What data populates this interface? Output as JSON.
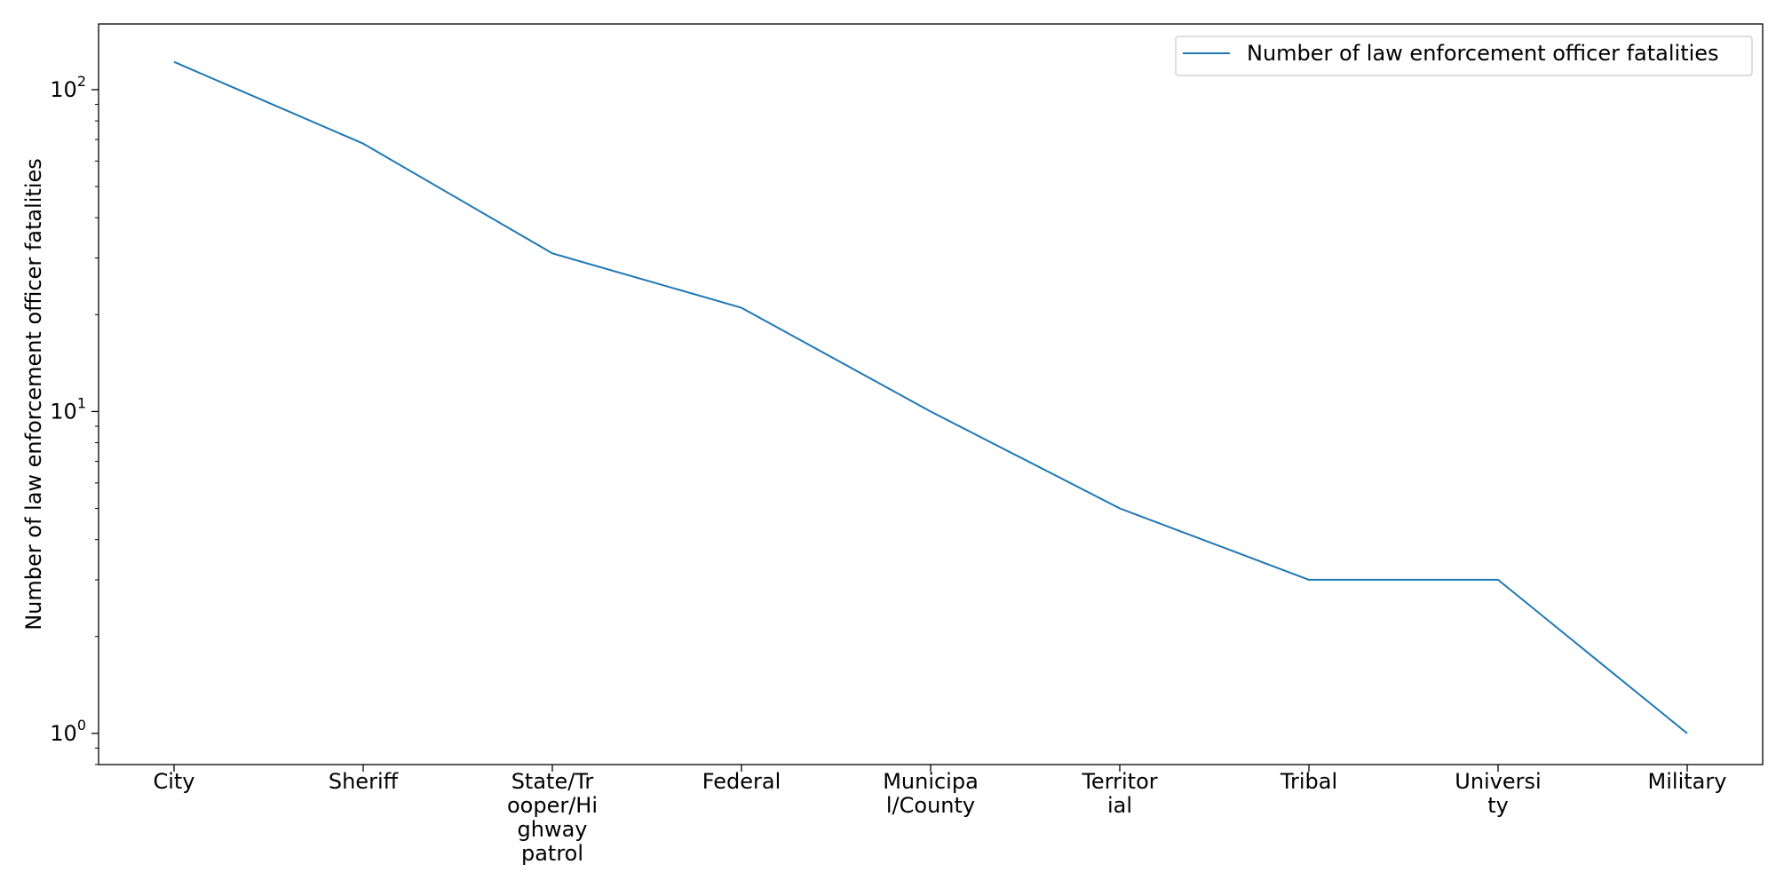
{
  "chart_data": {
    "type": "line",
    "title": "",
    "xlabel": "",
    "ylabel": "Number of law enforcement officer fatalities",
    "yscale": "log",
    "ylim": [
      0.8,
      160
    ],
    "y_ticks": [
      {
        "value": 1,
        "base": "10",
        "exp": "0"
      },
      {
        "value": 10,
        "base": "10",
        "exp": "1"
      },
      {
        "value": 100,
        "base": "10",
        "exp": "2"
      }
    ],
    "categories": [
      [
        "City"
      ],
      [
        "Sheriff"
      ],
      [
        "State/Tr",
        "ooper/Hi",
        "ghway",
        "patrol"
      ],
      [
        "Federal"
      ],
      [
        "Municipa",
        "l/County"
      ],
      [
        "Territor",
        "ial"
      ],
      [
        "Tribal"
      ],
      [
        "Universi",
        "ty"
      ],
      [
        "Military"
      ]
    ],
    "series": [
      {
        "name": "Number of law enforcement officer fatalities",
        "color": "#1f77b4",
        "values": [
          122,
          68,
          31,
          21,
          10,
          5,
          3,
          3,
          1
        ]
      }
    ],
    "legend": {
      "position": "top-right"
    },
    "grid": false
  }
}
